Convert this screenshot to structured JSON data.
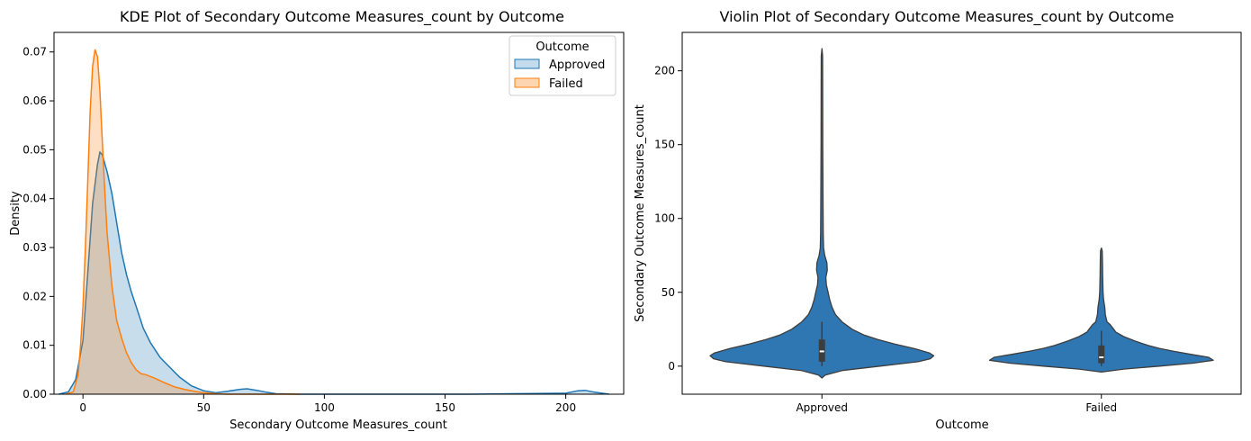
{
  "chart_data": [
    {
      "type": "area",
      "title": "KDE Plot of Secondary Outcome Measures_count by Outcome",
      "xlabel": "Secondary Outcome Measures_count",
      "ylabel": "Density",
      "xlim": [
        -12,
        224
      ],
      "ylim": [
        0,
        0.074
      ],
      "xticks": [
        0,
        50,
        100,
        150,
        200
      ],
      "yticks": [
        0.0,
        0.01,
        0.02,
        0.03,
        0.04,
        0.05,
        0.06,
        0.07
      ],
      "ytick_labels": [
        "0.00",
        "0.01",
        "0.02",
        "0.03",
        "0.04",
        "0.05",
        "0.06",
        "0.07"
      ],
      "legend": {
        "title": "Outcome",
        "placement": "top-right",
        "entries": [
          "Approved",
          "Failed"
        ]
      },
      "series": [
        {
          "name": "Approved",
          "color": "#1f77b4",
          "fill": "#c4dbee",
          "x": [
            -10,
            -6,
            -3,
            0,
            2,
            4,
            6,
            7,
            8,
            10,
            12,
            14,
            16,
            18,
            20,
            22,
            25,
            28,
            32,
            36,
            40,
            45,
            50,
            55,
            60,
            65,
            68,
            72,
            76,
            80,
            90,
            120,
            160,
            200,
            205,
            208,
            212,
            218
          ],
          "y": [
            0,
            0.0005,
            0.003,
            0.011,
            0.025,
            0.039,
            0.047,
            0.0495,
            0.049,
            0.0455,
            0.041,
            0.035,
            0.029,
            0.0245,
            0.021,
            0.018,
            0.0135,
            0.0105,
            0.0075,
            0.0055,
            0.0035,
            0.0017,
            0.0007,
            0.0003,
            0.0006,
            0.001,
            0.0011,
            0.0008,
            0.0004,
            0.0001,
            0.0,
            0.0,
            0.0,
            0.0002,
            0.0007,
            0.0008,
            0.0004,
            0.0
          ]
        },
        {
          "name": "Failed",
          "color": "#ff7f0e",
          "fill": "#fdd5b0",
          "x": [
            -7,
            -4,
            -2,
            -1,
            0,
            1,
            2,
            3,
            4,
            5,
            6,
            7,
            8,
            9,
            10,
            12,
            14,
            16,
            18,
            20,
            22,
            24,
            26,
            30,
            34,
            38,
            42,
            46,
            50,
            55,
            60,
            70,
            80,
            90
          ],
          "y": [
            0,
            0.0005,
            0.004,
            0.01,
            0.018,
            0.03,
            0.044,
            0.058,
            0.067,
            0.0705,
            0.069,
            0.062,
            0.052,
            0.042,
            0.033,
            0.022,
            0.015,
            0.0115,
            0.0085,
            0.0065,
            0.005,
            0.0042,
            0.004,
            0.0032,
            0.0023,
            0.0015,
            0.001,
            0.0006,
            0.0003,
            0.0001,
            0.0,
            0.0,
            0.0,
            0.0
          ]
        }
      ]
    },
    {
      "type": "violin",
      "title": "Violin Plot of Secondary Outcome Measures_count by Outcome",
      "xlabel": "Outcome",
      "ylabel": "Secondary Outcome Measures_count",
      "categories": [
        "Approved",
        "Failed"
      ],
      "ylim": [
        -19,
        226
      ],
      "yticks": [
        0,
        50,
        100,
        150,
        200
      ],
      "color": "#2f77b3",
      "violins": [
        {
          "name": "Approved",
          "profile": [
            [
              -8,
              0
            ],
            [
              -6,
              0.03
            ],
            [
              -3,
              0.18
            ],
            [
              0,
              0.52
            ],
            [
              3,
              0.86
            ],
            [
              5,
              0.97
            ],
            [
              7,
              1.0
            ],
            [
              9,
              0.96
            ],
            [
              12,
              0.82
            ],
            [
              15,
              0.65
            ],
            [
              18,
              0.5
            ],
            [
              21,
              0.38
            ],
            [
              25,
              0.27
            ],
            [
              30,
              0.18
            ],
            [
              35,
              0.12
            ],
            [
              40,
              0.09
            ],
            [
              45,
              0.07
            ],
            [
              50,
              0.055
            ],
            [
              55,
              0.04
            ],
            [
              60,
              0.035
            ],
            [
              65,
              0.048
            ],
            [
              70,
              0.045
            ],
            [
              75,
              0.025
            ],
            [
              80,
              0.015
            ],
            [
              90,
              0.012
            ],
            [
              110,
              0.01
            ],
            [
              150,
              0.008
            ],
            [
              190,
              0.007
            ],
            [
              210,
              0.006
            ],
            [
              215,
              0
            ]
          ],
          "q1": 3,
          "median": 10,
          "q3": 18,
          "whisker_low": 0,
          "whisker_high": 30
        },
        {
          "name": "Failed",
          "profile": [
            [
              -4,
              0
            ],
            [
              -2,
              0.2
            ],
            [
              0,
              0.52
            ],
            [
              2,
              0.82
            ],
            [
              4,
              1.0
            ],
            [
              6,
              0.96
            ],
            [
              8,
              0.8
            ],
            [
              10,
              0.65
            ],
            [
              12,
              0.52
            ],
            [
              14,
              0.42
            ],
            [
              17,
              0.3
            ],
            [
              20,
              0.2
            ],
            [
              23,
              0.13
            ],
            [
              25,
              0.11
            ],
            [
              28,
              0.08
            ],
            [
              30,
              0.05
            ],
            [
              35,
              0.035
            ],
            [
              40,
              0.03
            ],
            [
              45,
              0.02
            ],
            [
              50,
              0.015
            ],
            [
              60,
              0.012
            ],
            [
              70,
              0.01
            ],
            [
              78,
              0.008
            ],
            [
              80,
              0
            ]
          ],
          "q1": 2,
          "median": 6,
          "q3": 14,
          "whisker_low": 0,
          "whisker_high": 24
        }
      ]
    }
  ]
}
